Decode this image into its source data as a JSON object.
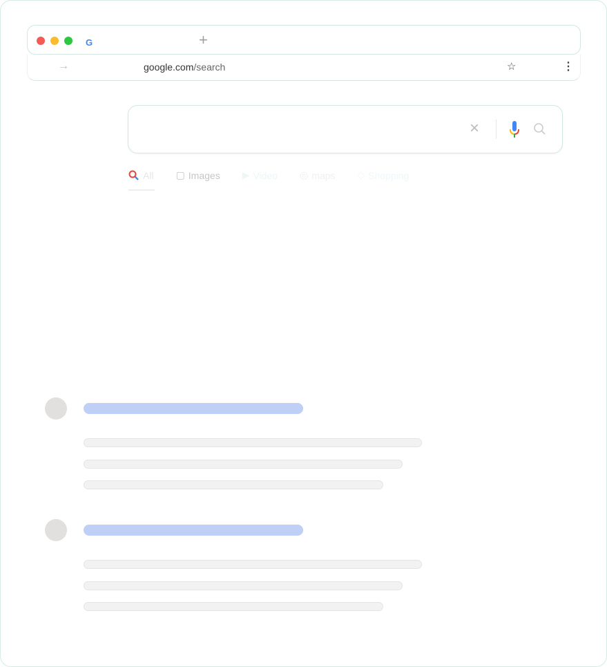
{
  "browser": {
    "traffic_lights": [
      "#f25c55",
      "#fbbb2d",
      "#2bc840"
    ],
    "new_tab": "+",
    "url_domain": "google.com",
    "url_path": "/search"
  },
  "search": {
    "value": "",
    "clear_icon": "×"
  },
  "tabs": [
    {
      "label": "All",
      "icon": "search-icon"
    },
    {
      "label": "Images",
      "icon": "image-icon"
    },
    {
      "label": "Video",
      "icon": "play-icon"
    },
    {
      "label": "maps",
      "icon": "pin-icon"
    },
    {
      "label": "Shopping",
      "icon": "tag-icon"
    }
  ],
  "results": [
    {
      "placeholder": true
    },
    {
      "placeholder": true
    }
  ]
}
